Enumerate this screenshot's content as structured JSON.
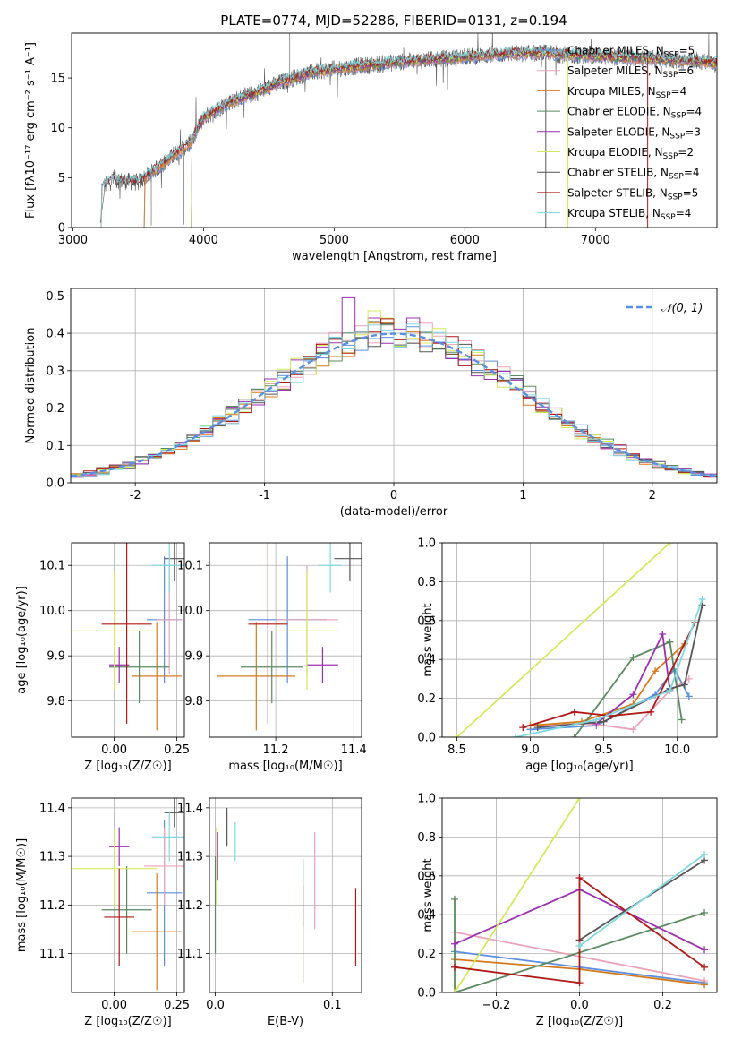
{
  "figure_title": "PLATE=0774, MJD=52286, FIBERID=0131, z=0.194",
  "colors": {
    "chabrier_miles": "#5b8ede",
    "salpeter_miles": "#e9a3b8",
    "kroupa_miles": "#d47a1c",
    "chabrier_elodie": "#5a8a60",
    "salpeter_elodie": "#9b2fb0",
    "kroupa_elodie": "#d4e85a",
    "chabrier_stelib": "#555555",
    "salpeter_stelib": "#b01818",
    "kroupa_stelib": "#7fd8e0",
    "gaussian": "#5b8ede",
    "grid": "#b0b0b0"
  },
  "chart_data": [
    {
      "id": "spectrum",
      "type": "line",
      "title": "PLATE=0774, MJD=52286, FIBERID=0131, z=0.194",
      "xlabel": "wavelength [Angstrom, rest frame]",
      "ylabel": "Flux [fλ10⁻¹⁷ erg cm⁻² s⁻¹ A⁻¹]",
      "xlim": [
        2990,
        7930
      ],
      "ylim": [
        0,
        19.5
      ],
      "xticks": [
        3000,
        4000,
        5000,
        6000,
        7000
      ],
      "yticks": [
        0,
        5,
        10,
        15
      ],
      "grid": false,
      "legend_position": "right",
      "x_range": [
        3210,
        7930
      ],
      "continuum": {
        "x": [
          3210,
          3300,
          3500,
          3700,
          3900,
          4000,
          4200,
          4400,
          4600,
          4800,
          5000,
          5200,
          5500,
          5800,
          6000,
          6300,
          6600,
          6800,
          7000,
          7300,
          7600,
          7930
        ],
        "y": [
          3.8,
          4.8,
          4.5,
          6.5,
          8.5,
          11.0,
          12.6,
          13.5,
          14.6,
          15.5,
          15.9,
          16.2,
          16.6,
          16.9,
          17.1,
          17.4,
          17.5,
          17.3,
          17.2,
          17.0,
          16.8,
          16.5
        ]
      },
      "series": [
        {
          "name": "Chabrier MILES, N_SSP=5",
          "color_key": "chabrier_miles",
          "x_start": 3540
        },
        {
          "name": "Salpeter MILES, N_SSP=6",
          "color_key": "salpeter_miles",
          "x_start": 3540
        },
        {
          "name": "Kroupa MILES, N_SSP=4",
          "color_key": "kroupa_miles",
          "x_start": 3540
        },
        {
          "name": "Chabrier ELODIE, N_SSP=4",
          "color_key": "chabrier_elodie",
          "x_start": 3900
        },
        {
          "name": "Salpeter ELODIE, N_SSP=3",
          "color_key": "salpeter_elodie",
          "x_start": 3900
        },
        {
          "name": "Kroupa ELODIE, N_SSP=2",
          "color_key": "kroupa_elodie",
          "x_start": 3900
        },
        {
          "name": "Chabrier STELIB, N_SSP=4",
          "color_key": "chabrier_stelib",
          "x_start": 3210
        },
        {
          "name": "Salpeter STELIB, N_SSP=5",
          "color_key": "salpeter_stelib",
          "x_start": 3210
        },
        {
          "name": "Kroupa STELIB, N_SSP=4",
          "color_key": "kroupa_stelib",
          "x_start": 3210
        }
      ],
      "data_series": {
        "color_key": "chabrier_stelib"
      }
    },
    {
      "id": "residuals",
      "type": "histogram",
      "xlabel": "(data-model)/error",
      "ylabel": "Normed distribution",
      "xlim": [
        -2.5,
        2.5
      ],
      "ylim": [
        0,
        0.52
      ],
      "xticks": [
        -2,
        -1,
        0,
        1,
        2
      ],
      "yticks": [
        0.0,
        0.1,
        0.2,
        0.3,
        0.4,
        0.5
      ],
      "grid": true,
      "legend_position": "top-right",
      "legend": "𝒩(0, 1)",
      "bin_width": 0.1,
      "overlay": {
        "type": "gaussian",
        "mean": 0,
        "sigma": 1,
        "color_key": "gaussian"
      },
      "peak_bins": [
        {
          "x": -0.3,
          "y": 0.495,
          "color_key": "salpeter_elodie"
        },
        {
          "x": -0.1,
          "y": 0.46,
          "color_key": "kroupa_elodie"
        }
      ]
    },
    {
      "id": "age_vs_Z",
      "type": "errorbar",
      "xlabel": "Z [log₁₀(Z/Z☉)]",
      "ylabel": "age  [log₁₀(age/yr)]",
      "xlim": [
        -0.17,
        0.28
      ],
      "ylim": [
        9.72,
        10.15
      ],
      "xticks": [
        0.0,
        0.25
      ],
      "xtick_labels": [
        "0.00",
        "0.25"
      ],
      "yticks": [
        9.8,
        9.9,
        10.0,
        10.1
      ],
      "grid": true,
      "points": [
        {
          "color_key": "chabrier_miles",
          "x": 0.2,
          "y": 9.98,
          "xerr": 0.07,
          "yerr": 0.14
        },
        {
          "color_key": "salpeter_miles",
          "x": 0.22,
          "y": 9.98,
          "xerr": 0.05,
          "yerr": 0.12
        },
        {
          "color_key": "kroupa_miles",
          "x": 0.17,
          "y": 9.855,
          "xerr": 0.1,
          "yerr": 0.12
        },
        {
          "color_key": "chabrier_elodie",
          "x": 0.1,
          "y": 9.875,
          "xerr": 0.12,
          "yerr": 0.08
        },
        {
          "color_key": "salpeter_elodie",
          "x": 0.02,
          "y": 9.88,
          "xerr": 0.04,
          "yerr": 0.04
        },
        {
          "color_key": "kroupa_elodie",
          "x": 0.0,
          "y": 9.955,
          "xerr": 0.17,
          "yerr": 0.13
        },
        {
          "color_key": "chabrier_stelib",
          "x": 0.24,
          "y": 10.115,
          "xerr": 0.04,
          "yerr": 0.05
        },
        {
          "color_key": "salpeter_stelib",
          "x": 0.05,
          "y": 9.97,
          "xerr": 0.1,
          "yerr": 0.22
        },
        {
          "color_key": "kroupa_stelib",
          "x": 0.22,
          "y": 10.1,
          "xerr": 0.07,
          "yerr": 0.06
        }
      ]
    },
    {
      "id": "age_vs_mass",
      "type": "errorbar",
      "xlabel": "mass [log₁₀(M/M☉)]",
      "ylabel": "",
      "xlim": [
        11.03,
        11.42
      ],
      "ylim": [
        9.72,
        10.15
      ],
      "xticks": [
        11.2,
        11.4
      ],
      "xtick_labels": [
        "11.2",
        "11.4"
      ],
      "yticks": [
        9.8,
        9.9,
        10.0,
        10.1
      ],
      "grid": true,
      "points": [
        {
          "color_key": "chabrier_miles",
          "x": 11.23,
          "y": 9.98,
          "xerr": 0.1,
          "yerr": 0.14
        },
        {
          "color_key": "salpeter_miles",
          "x": 11.28,
          "y": 9.98,
          "xerr": 0.08,
          "yerr": 0.12
        },
        {
          "color_key": "kroupa_miles",
          "x": 11.15,
          "y": 9.855,
          "xerr": 0.1,
          "yerr": 0.12
        },
        {
          "color_key": "chabrier_elodie",
          "x": 11.19,
          "y": 9.875,
          "xerr": 0.08,
          "yerr": 0.08
        },
        {
          "color_key": "salpeter_elodie",
          "x": 11.32,
          "y": 9.88,
          "xerr": 0.04,
          "yerr": 0.04
        },
        {
          "color_key": "kroupa_elodie",
          "x": 11.28,
          "y": 9.955,
          "xerr": 0.08,
          "yerr": 0.13
        },
        {
          "color_key": "chabrier_stelib",
          "x": 11.39,
          "y": 10.115,
          "xerr": 0.04,
          "yerr": 0.05
        },
        {
          "color_key": "salpeter_stelib",
          "x": 11.18,
          "y": 9.97,
          "xerr": 0.05,
          "yerr": 0.22
        },
        {
          "color_key": "kroupa_stelib",
          "x": 11.34,
          "y": 10.1,
          "xerr": 0.03,
          "yerr": 0.06
        }
      ]
    },
    {
      "id": "weight_vs_age",
      "type": "line",
      "xlabel": "age  [log₁₀(age/yr)]",
      "ylabel": "mass weight",
      "xlim": [
        8.4,
        10.27
      ],
      "ylim": [
        0,
        1.0
      ],
      "xticks": [
        8.5,
        9.0,
        9.5,
        10.0
      ],
      "xtick_labels": [
        "8.5",
        "9.0",
        "9.5",
        "10.0"
      ],
      "yticks": [
        0.0,
        0.2,
        0.4,
        0.6,
        0.8,
        1.0
      ],
      "grid": true,
      "series": [
        {
          "color_key": "chabrier_miles",
          "x": [
            9.0,
            9.45,
            9.85,
            9.98,
            10.08
          ],
          "y": [
            0.04,
            0.06,
            0.22,
            0.35,
            0.21
          ]
        },
        {
          "color_key": "salpeter_miles",
          "x": [
            9.05,
            9.4,
            9.7,
            9.95,
            10.08
          ],
          "y": [
            0.06,
            0.07,
            0.04,
            0.24,
            0.3
          ]
        },
        {
          "color_key": "kroupa_miles",
          "x": [
            9.0,
            9.35,
            9.7,
            9.85,
            10.05
          ],
          "y": [
            0.06,
            0.08,
            0.17,
            0.34,
            0.48
          ]
        },
        {
          "color_key": "chabrier_elodie",
          "x": [
            9.3,
            9.7,
            9.95,
            10.03
          ],
          "y": [
            0.0,
            0.41,
            0.49,
            0.09
          ]
        },
        {
          "color_key": "salpeter_elodie",
          "x": [
            9.45,
            9.7,
            9.9,
            9.95
          ],
          "y": [
            0.07,
            0.22,
            0.53,
            0.24
          ]
        },
        {
          "color_key": "kroupa_elodie",
          "x": [
            8.5,
            9.95
          ],
          "y": [
            0.0,
            1.0
          ]
        },
        {
          "color_key": "chabrier_stelib",
          "x": [
            9.05,
            9.5,
            9.95,
            10.05,
            10.17
          ],
          "y": [
            0.05,
            0.08,
            0.25,
            0.27,
            0.68
          ]
        },
        {
          "color_key": "salpeter_stelib",
          "x": [
            8.95,
            9.3,
            9.55,
            9.82,
            10.12
          ],
          "y": [
            0.05,
            0.13,
            0.11,
            0.13,
            0.59
          ]
        },
        {
          "color_key": "kroupa_stelib",
          "x": [
            8.9,
            9.45,
            9.95,
            10.17
          ],
          "y": [
            0.0,
            0.09,
            0.24,
            0.71
          ]
        }
      ]
    },
    {
      "id": "mass_vs_Z",
      "type": "errorbar",
      "xlabel": "Z [log₁₀(Z/Z☉)]",
      "ylabel": "mass [log₁₀(M/M☉)]",
      "xlim": [
        -0.17,
        0.28
      ],
      "ylim": [
        11.02,
        11.42
      ],
      "xticks": [
        0.0,
        0.25
      ],
      "xtick_labels": [
        "0.00",
        "0.25"
      ],
      "yticks": [
        11.1,
        11.2,
        11.3,
        11.4
      ],
      "grid": true,
      "points": [
        {
          "color_key": "chabrier_miles",
          "x": 0.2,
          "y": 11.225,
          "xerr": 0.07,
          "yerr": 0.15
        },
        {
          "color_key": "salpeter_miles",
          "x": 0.2,
          "y": 11.28,
          "xerr": 0.08,
          "yerr": 0.08
        },
        {
          "color_key": "kroupa_miles",
          "x": 0.17,
          "y": 11.145,
          "xerr": 0.1,
          "yerr": 0.12
        },
        {
          "color_key": "chabrier_elodie",
          "x": 0.05,
          "y": 11.19,
          "xerr": 0.1,
          "yerr": 0.09
        },
        {
          "color_key": "salpeter_elodie",
          "x": 0.02,
          "y": 11.32,
          "xerr": 0.04,
          "yerr": 0.04
        },
        {
          "color_key": "kroupa_elodie",
          "x": 0.0,
          "y": 11.275,
          "xerr": 0.17,
          "yerr": 0.08
        },
        {
          "color_key": "chabrier_stelib",
          "x": 0.24,
          "y": 11.39,
          "xerr": 0.04,
          "yerr": 0.03
        },
        {
          "color_key": "salpeter_stelib",
          "x": 0.02,
          "y": 11.175,
          "xerr": 0.06,
          "yerr": 0.1
        },
        {
          "color_key": "kroupa_stelib",
          "x": 0.22,
          "y": 11.34,
          "xerr": 0.07,
          "yerr": 0.05
        }
      ]
    },
    {
      "id": "mass_vs_ebv",
      "type": "errorbar",
      "xlabel": "E(B-V)",
      "ylabel": "",
      "xlim": [
        -0.005,
        0.125
      ],
      "ylim": [
        11.02,
        11.42
      ],
      "xticks": [
        0.0,
        0.1
      ],
      "xtick_labels": [
        "0.0",
        "0.1"
      ],
      "yticks": [
        11.1,
        11.2,
        11.3,
        11.4
      ],
      "grid": true,
      "points": [
        {
          "color_key": "chabrier_miles",
          "x": 0.075,
          "y": 11.225,
          "xerr": 0,
          "yerr": 0.07
        },
        {
          "color_key": "salpeter_miles",
          "x": 0.085,
          "y": 11.25,
          "xerr": 0,
          "yerr": 0.1
        },
        {
          "color_key": "kroupa_miles",
          "x": 0.075,
          "y": 11.14,
          "xerr": 0,
          "yerr": 0.1
        },
        {
          "color_key": "chabrier_elodie",
          "x": 0.0,
          "y": 11.2,
          "xerr": 0,
          "yerr": 0.1
        },
        {
          "color_key": "salpeter_elodie",
          "x": 0.002,
          "y": 11.3,
          "xerr": 0,
          "yerr": 0.05
        },
        {
          "color_key": "kroupa_elodie",
          "x": 0.001,
          "y": 11.28,
          "xerr": 0,
          "yerr": 0.08
        },
        {
          "color_key": "chabrier_stelib",
          "x": 0.01,
          "y": 11.36,
          "xerr": 0,
          "yerr": 0.04
        },
        {
          "color_key": "salpeter_stelib",
          "x": 0.12,
          "y": 11.155,
          "xerr": 0,
          "yerr": 0.08
        },
        {
          "color_key": "kroupa_stelib",
          "x": 0.017,
          "y": 11.33,
          "xerr": 0,
          "yerr": 0.04
        }
      ]
    },
    {
      "id": "weight_vs_Z",
      "type": "line",
      "xlabel": "Z [log₁₀(Z/Z☉)]",
      "ylabel": "mass weight",
      "xlim": [
        -0.33,
        0.33
      ],
      "ylim": [
        0,
        1.0
      ],
      "xticks": [
        -0.2,
        0.0,
        0.2
      ],
      "xtick_labels": [
        "−0.2",
        "0.0",
        "0.2"
      ],
      "yticks": [
        0.0,
        0.2,
        0.4,
        0.6,
        0.8,
        1.0
      ],
      "grid": true,
      "series": [
        {
          "color_key": "chabrier_miles",
          "x": [
            -0.3,
            0.3
          ],
          "y": [
            0.21,
            0.05
          ]
        },
        {
          "color_key": "salpeter_miles",
          "x": [
            -0.3,
            0.3
          ],
          "y": [
            0.31,
            0.06
          ]
        },
        {
          "color_key": "kroupa_miles",
          "x": [
            -0.3,
            0.0,
            0.3
          ],
          "y": [
            0.17,
            0.12,
            0.04
          ]
        },
        {
          "color_key": "chabrier_elodie",
          "x": [
            -0.3,
            -0.3,
            0.3
          ],
          "y": [
            0.48,
            0.0,
            0.41
          ]
        },
        {
          "color_key": "salpeter_elodie",
          "x": [
            -0.3,
            0.0,
            0.3
          ],
          "y": [
            0.25,
            0.53,
            0.22
          ]
        },
        {
          "color_key": "kroupa_elodie",
          "x": [
            -0.3,
            0.0
          ],
          "y": [
            0.0,
            1.0
          ]
        },
        {
          "color_key": "chabrier_stelib",
          "x": [
            0.0,
            0.3
          ],
          "y": [
            0.27,
            0.68
          ]
        },
        {
          "color_key": "salpeter_stelib",
          "x": [
            -0.3,
            0.0,
            0.0,
            0.3
          ],
          "y": [
            0.13,
            0.05,
            0.59,
            0.13
          ]
        },
        {
          "color_key": "kroupa_stelib",
          "x": [
            0.0,
            0.3
          ],
          "y": [
            0.24,
            0.71
          ]
        }
      ]
    }
  ]
}
